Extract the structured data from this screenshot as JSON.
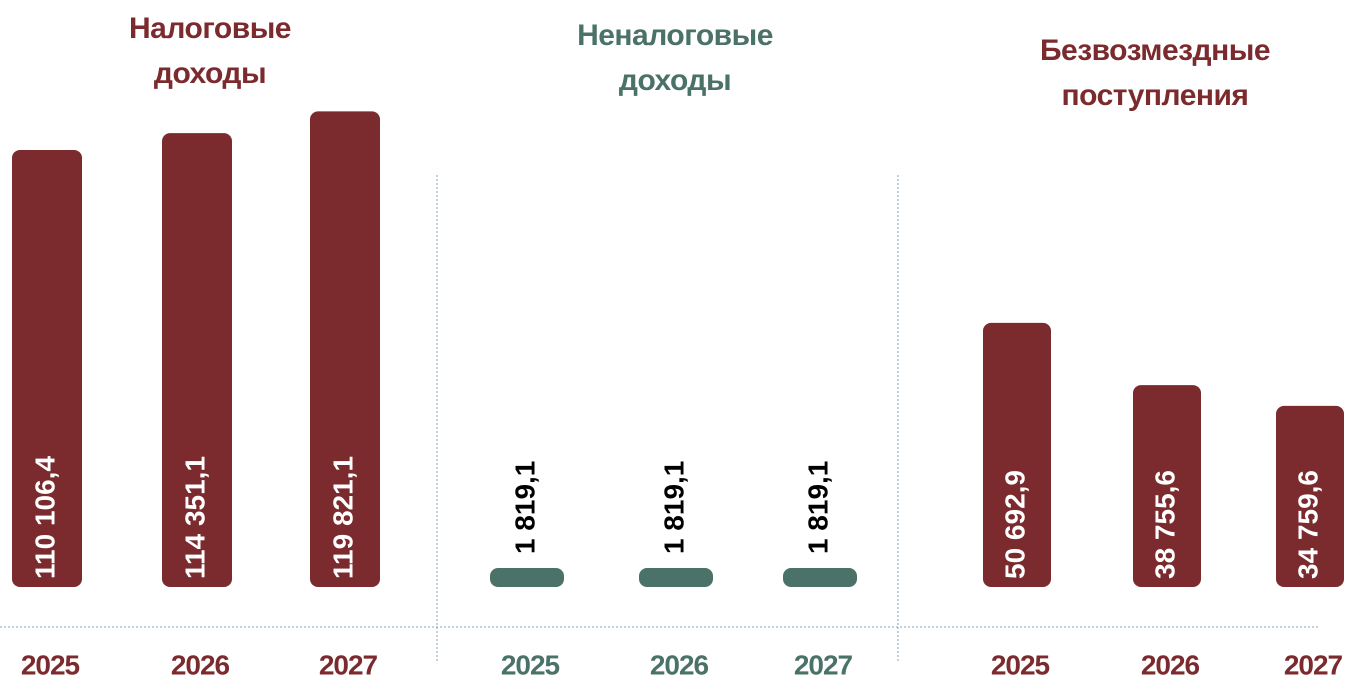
{
  "chart_data": [
    {
      "type": "bar",
      "title": [
        "Налоговые",
        "доходы"
      ],
      "categories": [
        "2025",
        "2026",
        "2027"
      ],
      "values": [
        110106.4,
        114351.1,
        119821.1
      ],
      "value_labels": [
        "110 106,4",
        "114 351,1",
        "119 821,1"
      ],
      "color": "#7b2b2e",
      "label_position": "inside",
      "ylim": [
        0,
        130000
      ]
    },
    {
      "type": "bar",
      "title": [
        "Неналоговые",
        "доходы"
      ],
      "categories": [
        "2025",
        "2026",
        "2027"
      ],
      "values": [
        1819.1,
        1819.1,
        1819.1
      ],
      "value_labels": [
        "1 819,1",
        "1 819,1",
        "1 819,1"
      ],
      "color": "#4a7268",
      "label_position": "above",
      "ylim": [
        0,
        50000
      ]
    },
    {
      "type": "bar",
      "title": [
        "Безвозмездные",
        "поступления"
      ],
      "categories": [
        "2025",
        "2026",
        "2027"
      ],
      "values": [
        50692.9,
        38755.6,
        34759.6
      ],
      "value_labels": [
        "50 692,9",
        "38 755,6",
        "34 759,6"
      ],
      "color": "#7b2b2e",
      "label_position": "inside",
      "ylim": [
        0,
        100000
      ]
    }
  ]
}
